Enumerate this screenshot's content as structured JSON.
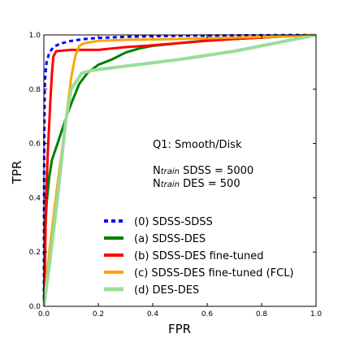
{
  "chart_data": {
    "type": "line",
    "xlabel": "FPR",
    "ylabel": "TPR",
    "xlim": [
      0,
      1
    ],
    "ylim": [
      0,
      1
    ],
    "xticks": [
      "0.0",
      "0.2",
      "0.4",
      "0.6",
      "0.8",
      "1.0"
    ],
    "yticks": [
      "0.0",
      "0.2",
      "0.4",
      "0.6",
      "0.8",
      "1.0"
    ],
    "grid": false,
    "legend_position": "lower-center",
    "annotations": {
      "question": "Q1: Smooth/Disk",
      "ntrain_sdss_prefix": "N",
      "ntrain_sdss_sub": "train",
      "ntrain_sdss_rest": " SDSS = 5000",
      "ntrain_des_prefix": "N",
      "ntrain_des_sub": "train",
      "ntrain_des_rest": " DES = 500"
    },
    "series": [
      {
        "name": "(0) SDSS-SDSS",
        "color": "#0000ff",
        "dashed": true,
        "width": 3,
        "points": [
          [
            0,
            0
          ],
          [
            0.001,
            0.5
          ],
          [
            0.003,
            0.8
          ],
          [
            0.006,
            0.86
          ],
          [
            0.01,
            0.9
          ],
          [
            0.02,
            0.935
          ],
          [
            0.035,
            0.955
          ],
          [
            0.06,
            0.968
          ],
          [
            0.1,
            0.978
          ],
          [
            0.15,
            0.985
          ],
          [
            0.2,
            0.989
          ],
          [
            0.3,
            0.993
          ],
          [
            0.5,
            0.997
          ],
          [
            1,
            1
          ]
        ]
      },
      {
        "name": "(a) SDSS-DES",
        "color": "#007f00",
        "dashed": false,
        "width": 3,
        "points": [
          [
            0,
            0
          ],
          [
            0.005,
            0.28
          ],
          [
            0.01,
            0.38
          ],
          [
            0.02,
            0.48
          ],
          [
            0.03,
            0.54
          ],
          [
            0.05,
            0.6
          ],
          [
            0.07,
            0.66
          ],
          [
            0.09,
            0.72
          ],
          [
            0.11,
            0.77
          ],
          [
            0.13,
            0.82
          ],
          [
            0.16,
            0.86
          ],
          [
            0.2,
            0.89
          ],
          [
            0.25,
            0.91
          ],
          [
            0.3,
            0.935
          ],
          [
            0.35,
            0.95
          ],
          [
            0.4,
            0.96
          ],
          [
            0.5,
            0.97
          ],
          [
            0.6,
            0.98
          ],
          [
            0.8,
            0.99
          ],
          [
            1,
            1
          ]
        ]
      },
      {
        "name": "(b) SDSS-DES fine-tuned",
        "color": "#ff0000",
        "dashed": false,
        "width": 3,
        "points": [
          [
            0,
            0
          ],
          [
            0.003,
            0.08
          ],
          [
            0.008,
            0.4
          ],
          [
            0.015,
            0.58
          ],
          [
            0.02,
            0.68
          ],
          [
            0.025,
            0.78
          ],
          [
            0.03,
            0.86
          ],
          [
            0.035,
            0.92
          ],
          [
            0.045,
            0.94
          ],
          [
            0.1,
            0.945
          ],
          [
            0.2,
            0.945
          ],
          [
            0.3,
            0.955
          ],
          [
            0.4,
            0.962
          ],
          [
            0.5,
            0.97
          ],
          [
            0.6,
            0.978
          ],
          [
            0.7,
            0.985
          ],
          [
            0.85,
            0.993
          ],
          [
            1,
            1
          ]
        ]
      },
      {
        "name": "(c) SDSS-DES fine-tuned (FCL)",
        "color": "#ffa500",
        "dashed": false,
        "width": 3,
        "points": [
          [
            0,
            0
          ],
          [
            0.02,
            0.2
          ],
          [
            0.05,
            0.45
          ],
          [
            0.08,
            0.68
          ],
          [
            0.1,
            0.84
          ],
          [
            0.115,
            0.92
          ],
          [
            0.13,
            0.96
          ],
          [
            0.15,
            0.97
          ],
          [
            0.2,
            0.978
          ],
          [
            0.3,
            0.982
          ],
          [
            0.5,
            0.985
          ],
          [
            0.7,
            0.99
          ],
          [
            0.9,
            0.995
          ],
          [
            1,
            1
          ]
        ]
      },
      {
        "name": "(d) DES-DES",
        "color": "#99dd99",
        "dashed": false,
        "width": 4,
        "points": [
          [
            0,
            0
          ],
          [
            0.02,
            0.15
          ],
          [
            0.05,
            0.4
          ],
          [
            0.08,
            0.68
          ],
          [
            0.1,
            0.8
          ],
          [
            0.12,
            0.83
          ],
          [
            0.14,
            0.86
          ],
          [
            0.18,
            0.87
          ],
          [
            0.3,
            0.885
          ],
          [
            0.5,
            0.91
          ],
          [
            0.7,
            0.94
          ],
          [
            0.9,
            0.98
          ],
          [
            1,
            1
          ]
        ]
      }
    ]
  }
}
